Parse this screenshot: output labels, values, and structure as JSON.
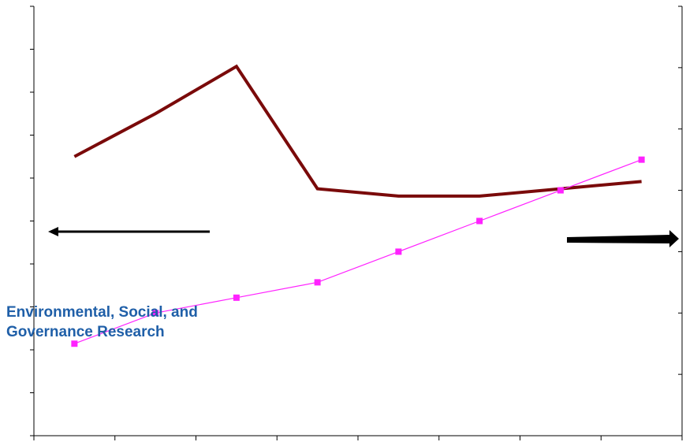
{
  "colors": {
    "background": "#ffffff",
    "axis": "#000000",
    "series_1": "#7a0a0a",
    "series_2": "#ff22ff",
    "annotation_text": "#1f5fa8",
    "arrows": "#000000"
  },
  "annotation": {
    "text": "Environmental, Social, and\nGovernance Research"
  },
  "arrows": [
    {
      "points_to": "left-axis",
      "style": "thin"
    },
    {
      "points_to": "right-axis",
      "style": "thick"
    }
  ],
  "chart_data": {
    "type": "line",
    "title": "",
    "xlabel": "",
    "ylabel": "",
    "y2label": "",
    "grid": false,
    "legend": "none",
    "x_categories": 8,
    "x_ticks": 8,
    "y_left": {
      "range": [
        0,
        10
      ],
      "ticks": 10,
      "tick_labels": false
    },
    "y_right": {
      "range": [
        0,
        7
      ],
      "ticks": 7,
      "tick_labels": false
    },
    "series": [
      {
        "axis": "left",
        "color": "#7a0a0a",
        "marker": "none",
        "values": [
          6.5,
          7.5,
          8.6,
          5.75,
          5.58,
          5.58,
          5.75,
          5.92
        ]
      },
      {
        "axis": "right",
        "color": "#ff22ff",
        "marker": "square",
        "values": [
          1.5,
          2.0,
          2.25,
          2.5,
          3.0,
          3.5,
          4.0,
          4.5
        ]
      }
    ]
  }
}
